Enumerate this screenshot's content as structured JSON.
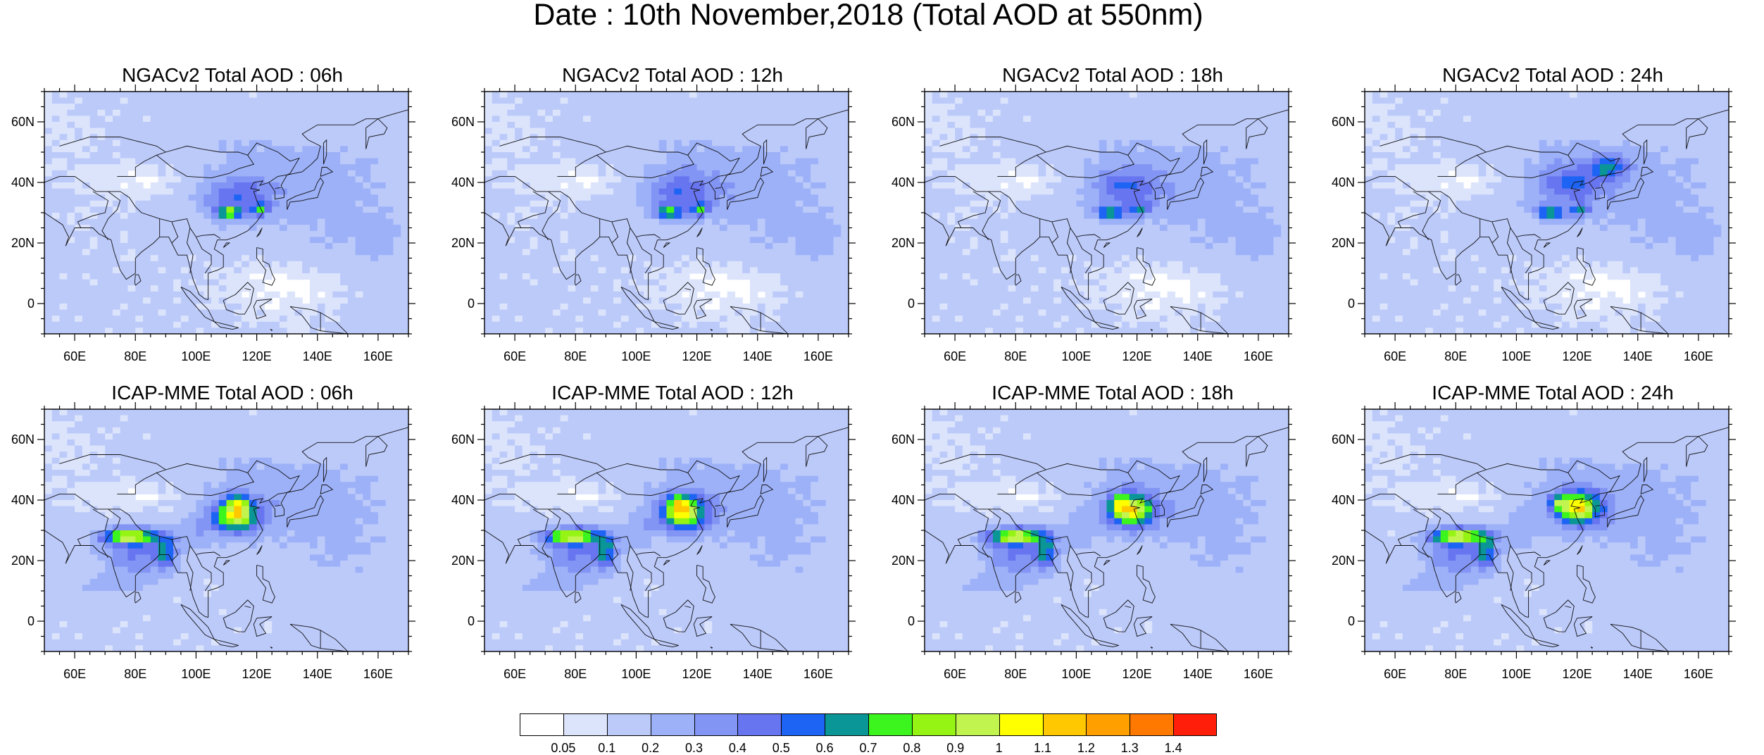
{
  "title": "Date : 10th November,2018 (Total AOD at 550nm)",
  "axes": {
    "lat_ticks": [
      "60N",
      "40N",
      "20N",
      "0"
    ],
    "lon_ticks": [
      "60E",
      "80E",
      "100E",
      "120E",
      "140E",
      "160E"
    ]
  },
  "panels": [
    {
      "title": "NGACv2 Total AOD : 06h"
    },
    {
      "title": "NGACv2 Total AOD : 12h"
    },
    {
      "title": "NGACv2 Total AOD : 18h"
    },
    {
      "title": "NGACv2 Total AOD : 24h"
    },
    {
      "title": "ICAP-MME Total AOD : 06h"
    },
    {
      "title": "ICAP-MME Total AOD : 12h"
    },
    {
      "title": "ICAP-MME Total AOD : 18h"
    },
    {
      "title": "ICAP-MME Total AOD : 24h"
    }
  ],
  "colorbar": {
    "labels": [
      "0.05",
      "0.1",
      "0.2",
      "0.3",
      "0.4",
      "0.5",
      "0.6",
      "0.7",
      "0.8",
      "0.9",
      "1",
      "1.1",
      "1.2",
      "1.3",
      "1.4"
    ],
    "colors": [
      "#ffffff",
      "#dce4fc",
      "#bccafa",
      "#9db1f8",
      "#8294f4",
      "#6875f0",
      "#1e64f4",
      "#0a9696",
      "#3cf41e",
      "#96f414",
      "#c2f450",
      "#ffff00",
      "#ffc800",
      "#ffa000",
      "#ff7800",
      "#ff1e0a"
    ]
  }
}
